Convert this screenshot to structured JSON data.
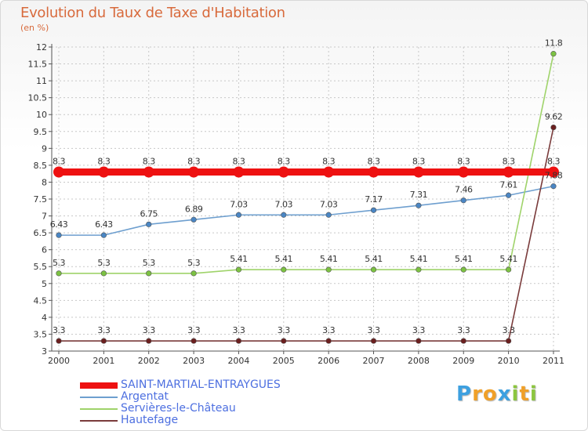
{
  "colors": {
    "title": "#d86a3c",
    "legend_text": "#4d6fe0",
    "axis": "#555555",
    "grid": "#c8c8c8",
    "label": "#333333"
  },
  "brand": {
    "text": "Proxiti",
    "letters": [
      {
        "char": "P",
        "color": "#3da0e0"
      },
      {
        "char": "r",
        "color": "#f0a028"
      },
      {
        "char": "o",
        "color": "#f0a028"
      },
      {
        "char": "x",
        "color": "#3da0e0"
      },
      {
        "char": "i",
        "color": "#8cc63f"
      },
      {
        "char": "t",
        "color": "#f0a028"
      },
      {
        "char": "i",
        "color": "#8cc63f"
      }
    ]
  },
  "chart_data": {
    "type": "line",
    "title": "Evolution du Taux de Taxe d'Habitation",
    "subtitle": "(en %)",
    "xlabel": "",
    "ylabel": "(en %)",
    "categories": [
      "2000",
      "2001",
      "2002",
      "2003",
      "2004",
      "2005",
      "2006",
      "2007",
      "2008",
      "2009",
      "2010",
      "2011"
    ],
    "ylim": [
      3,
      12
    ],
    "yticks": [
      "3",
      "3.5",
      "4",
      "4.5",
      "5",
      "5.5",
      "6",
      "6.5",
      "7",
      "7.5",
      "8",
      "8.5",
      "9",
      "9.5",
      "10",
      "10.5",
      "11",
      "11.5",
      "12"
    ],
    "grid": true,
    "legend_position": "bottom-left",
    "series": [
      {
        "name": "SAINT-MARTIAL-ENTRAYGUES",
        "color": "#ee1111",
        "marker": "#ee1111",
        "thick": true,
        "values": [
          8.3,
          8.3,
          8.3,
          8.3,
          8.3,
          8.3,
          8.3,
          8.3,
          8.3,
          8.3,
          8.3,
          8.3
        ],
        "labels": [
          "8.3",
          "8.3",
          "8.3",
          "8.3",
          "8.3",
          "8.3",
          "8.3",
          "8.3",
          "8.3",
          "8.3",
          "8.3",
          "8.3"
        ]
      },
      {
        "name": "Argentat",
        "color": "#6e9fcf",
        "marker": "#4a86c4",
        "thick": false,
        "values": [
          6.43,
          6.43,
          6.75,
          6.89,
          7.03,
          7.03,
          7.03,
          7.17,
          7.31,
          7.46,
          7.61,
          7.88
        ],
        "labels": [
          "6.43",
          "6.43",
          "6.75",
          "6.89",
          "7.03",
          "7.03",
          "7.03",
          "7.17",
          "7.31",
          "7.46",
          "7.61",
          "7.88"
        ]
      },
      {
        "name": "Servières-le-Château",
        "color": "#9fd36a",
        "marker": "#7cc242",
        "thick": false,
        "values": [
          5.3,
          5.3,
          5.3,
          5.3,
          5.41,
          5.41,
          5.41,
          5.41,
          5.41,
          5.41,
          5.41,
          11.8
        ],
        "labels": [
          "5.3",
          "5.3",
          "5.3",
          "5.3",
          "5.41",
          "5.41",
          "5.41",
          "5.41",
          "5.41",
          "5.41",
          "5.41",
          "11.8"
        ]
      },
      {
        "name": "Hautefage",
        "color": "#7a3b3b",
        "marker": "#6b1f1f",
        "thick": false,
        "values": [
          3.3,
          3.3,
          3.3,
          3.3,
          3.3,
          3.3,
          3.3,
          3.3,
          3.3,
          3.3,
          3.3,
          9.62
        ],
        "labels": [
          "3.3",
          "3.3",
          "3.3",
          "3.3",
          "3.3",
          "3.3",
          "3.3",
          "3.3",
          "3.3",
          "3.3",
          "3.3",
          "9.62"
        ]
      }
    ]
  }
}
